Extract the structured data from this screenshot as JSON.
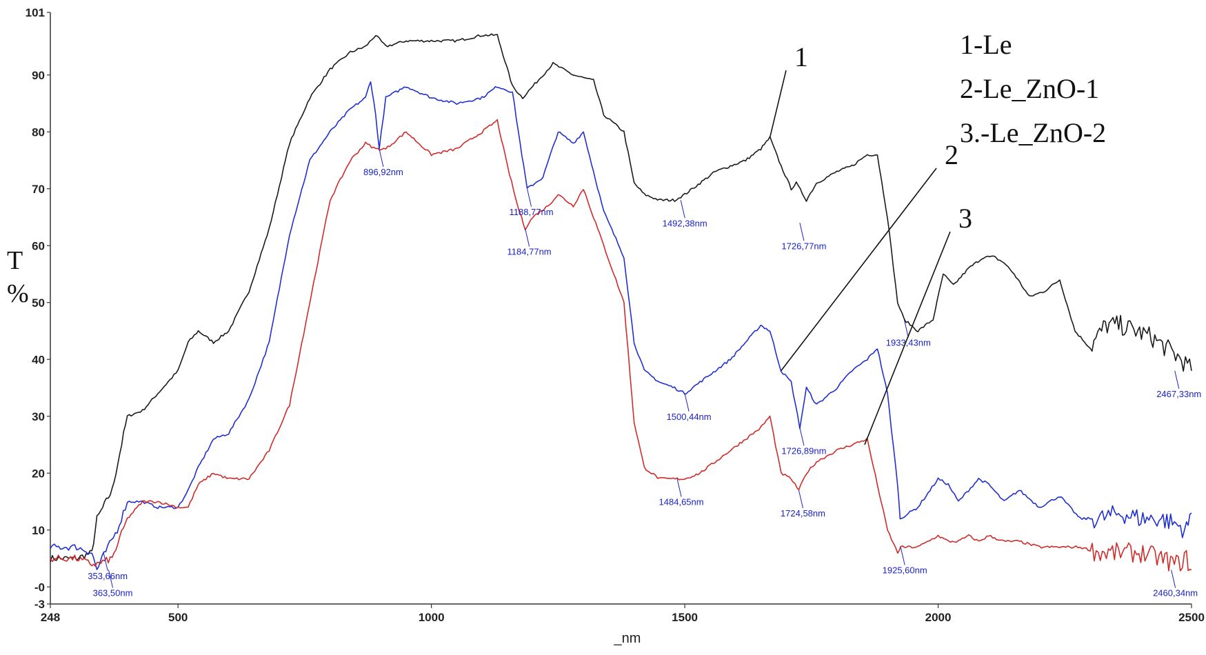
{
  "chart_data": {
    "type": "line",
    "ylabel": "T\n%",
    "xlabel": "_nm",
    "xlim": [
      248,
      2500
    ],
    "ylim": [
      -3,
      101
    ],
    "x_ticks": [
      248,
      500,
      1000,
      1500,
      2000,
      2500
    ],
    "y_ticks": [
      {
        "value": -3,
        "label": "-3"
      },
      {
        "value": 0,
        "label": "-0"
      },
      {
        "value": 10,
        "label": "10"
      },
      {
        "value": 20,
        "label": "20"
      },
      {
        "value": 30,
        "label": "30"
      },
      {
        "value": 40,
        "label": "40"
      },
      {
        "value": 50,
        "label": "50"
      },
      {
        "value": 60,
        "label": "60"
      },
      {
        "value": 70,
        "label": "70"
      },
      {
        "value": 80,
        "label": "80"
      },
      {
        "value": 90,
        "label": "90"
      },
      {
        "value": 101,
        "label": "101"
      }
    ],
    "legend": [
      "1-Le",
      "2-Le_ZnO-1",
      "3.-Le_ZnO-2"
    ],
    "series": [
      {
        "id": "1",
        "color": "#1a1a1a",
        "x": [
          248,
          300,
          330,
          340,
          370,
          400,
          430,
          460,
          500,
          520,
          540,
          570,
          600,
          640,
          680,
          720,
          760,
          800,
          840,
          870,
          890,
          910,
          950,
          1000,
          1050,
          1100,
          1130,
          1160,
          1180,
          1200,
          1240,
          1260,
          1280,
          1320,
          1340,
          1380,
          1400,
          1420,
          1450,
          1480,
          1500,
          1530,
          1560,
          1590,
          1620,
          1650,
          1668,
          1690,
          1710,
          1720,
          1740,
          1760,
          1800,
          1830,
          1860,
          1880,
          1900,
          1920,
          1933,
          1960,
          1990,
          2010,
          2030,
          2060,
          2090,
          2110,
          2130,
          2150,
          2180,
          2210,
          2240,
          2270,
          2300,
          2330,
          2360,
          2390,
          2420,
          2450,
          2480,
          2500
        ],
        "y": [
          5,
          5,
          6,
          12,
          17,
          30,
          31,
          34,
          38,
          43,
          45,
          43,
          45,
          52,
          63,
          78,
          86,
          91,
          94,
          95,
          97,
          95,
          96,
          96,
          96,
          97,
          97,
          88,
          86,
          88,
          92,
          91,
          90,
          89,
          83,
          80,
          71,
          69,
          68,
          68,
          69,
          71,
          73,
          74,
          75,
          77,
          79,
          74,
          70,
          71,
          68,
          71,
          73,
          74,
          76,
          76,
          65,
          50,
          47,
          45,
          47,
          55,
          53,
          56,
          58,
          58,
          57,
          55,
          51,
          52,
          54,
          45,
          42,
          46,
          46,
          45,
          44,
          42,
          40,
          38
        ]
      },
      {
        "id": "2",
        "color": "#1f2fd0",
        "x": [
          248,
          300,
          330,
          340,
          350,
          380,
          400,
          430,
          460,
          500,
          520,
          540,
          570,
          600,
          640,
          680,
          720,
          760,
          800,
          840,
          870,
          880,
          890,
          897,
          910,
          950,
          1000,
          1050,
          1100,
          1130,
          1160,
          1175,
          1189,
          1220,
          1250,
          1280,
          1300,
          1320,
          1340,
          1380,
          1400,
          1420,
          1450,
          1480,
          1500,
          1530,
          1560,
          1590,
          1620,
          1650,
          1668,
          1690,
          1710,
          1727,
          1740,
          1760,
          1800,
          1830,
          1860,
          1880,
          1900,
          1920,
          1925,
          1960,
          2000,
          2020,
          2040,
          2060,
          2080,
          2100,
          2130,
          2160,
          2200,
          2240,
          2280,
          2320,
          2360,
          2400,
          2440,
          2470,
          2490,
          2500
        ],
        "y": [
          7,
          7,
          6,
          3,
          5,
          10,
          15,
          15,
          14,
          14,
          17,
          21,
          26,
          27,
          33,
          43,
          62,
          75,
          80,
          84,
          86,
          89,
          83,
          77,
          86,
          88,
          86,
          85,
          86,
          88,
          87,
          78,
          70,
          72,
          80,
          78,
          80,
          73,
          66,
          58,
          43,
          38,
          36,
          35,
          34,
          36,
          38,
          40,
          43,
          46,
          45,
          38,
          36,
          28,
          35,
          32,
          35,
          38,
          40,
          42,
          34,
          18,
          12,
          14,
          19,
          18,
          15,
          17,
          19,
          18,
          15,
          17,
          14,
          16,
          12,
          12,
          13,
          12,
          12,
          11,
          10,
          13
        ]
      },
      {
        "id": "3",
        "color": "#d02a2a",
        "x": [
          248,
          300,
          330,
          340,
          370,
          400,
          430,
          460,
          500,
          520,
          540,
          570,
          600,
          640,
          680,
          720,
          760,
          800,
          840,
          870,
          890,
          910,
          950,
          1000,
          1050,
          1100,
          1130,
          1150,
          1170,
          1185,
          1200,
          1230,
          1250,
          1280,
          1300,
          1320,
          1340,
          1380,
          1400,
          1420,
          1450,
          1485,
          1500,
          1530,
          1560,
          1590,
          1620,
          1650,
          1668,
          1690,
          1710,
          1725,
          1740,
          1760,
          1800,
          1830,
          1860,
          1880,
          1900,
          1920,
          1926,
          1960,
          2000,
          2020,
          2040,
          2060,
          2080,
          2100,
          2130,
          2160,
          2200,
          2240,
          2280,
          2320,
          2360,
          2400,
          2440,
          2470,
          2490,
          2500
        ],
        "y": [
          5,
          5,
          4,
          4,
          5,
          12,
          15,
          15,
          14,
          14,
          18,
          20,
          19,
          19,
          24,
          32,
          50,
          68,
          75,
          78,
          77,
          77,
          80,
          76,
          77,
          80,
          82,
          74,
          67,
          63,
          65,
          67,
          69,
          67,
          70,
          65,
          60,
          50,
          29,
          21,
          19,
          19,
          19,
          20,
          22,
          24,
          26,
          28,
          30,
          20,
          19,
          17,
          20,
          22,
          24,
          25,
          26,
          18,
          10,
          6,
          7,
          7,
          9,
          8,
          8,
          9,
          8,
          9,
          8,
          8,
          7,
          7,
          7,
          6,
          6,
          6,
          5,
          4,
          5,
          3
        ]
      }
    ],
    "annotations": [
      {
        "text": "896,92nm",
        "x": 897,
        "y": 77
      },
      {
        "text": "1188,77nm",
        "x": 1189,
        "y": 70
      },
      {
        "text": "1184,77nm",
        "x": 1185,
        "y": 63
      },
      {
        "text": "1492,38nm",
        "x": 1492,
        "y": 68
      },
      {
        "text": "1726,77nm",
        "x": 1727,
        "y": 64
      },
      {
        "text": "1500,44nm",
        "x": 1500,
        "y": 34
      },
      {
        "text": "1726,89nm",
        "x": 1727,
        "y": 28
      },
      {
        "text": "1933,43nm",
        "x": 1933,
        "y": 47
      },
      {
        "text": "2467,33nm",
        "x": 2467,
        "y": 38
      },
      {
        "text": "1484,65nm",
        "x": 1485,
        "y": 19
      },
      {
        "text": "1724,58nm",
        "x": 1725,
        "y": 17
      },
      {
        "text": "1925,60nm",
        "x": 1926,
        "y": 7
      },
      {
        "text": "2460,34nm",
        "x": 2460,
        "y": 3
      },
      {
        "text": "353,66nm",
        "x": 353,
        "y": 6
      },
      {
        "text": "363,50nm",
        "x": 363,
        "y": 3
      }
    ],
    "curve_labels": [
      {
        "text": "1",
        "series": "1",
        "anchor_x": 1668,
        "anchor_y": 79
      },
      {
        "text": "2",
        "series": "2",
        "anchor_x": 1690,
        "anchor_y": 38
      },
      {
        "text": "3",
        "series": "3",
        "anchor_x": 1855,
        "anchor_y": 25
      }
    ]
  }
}
